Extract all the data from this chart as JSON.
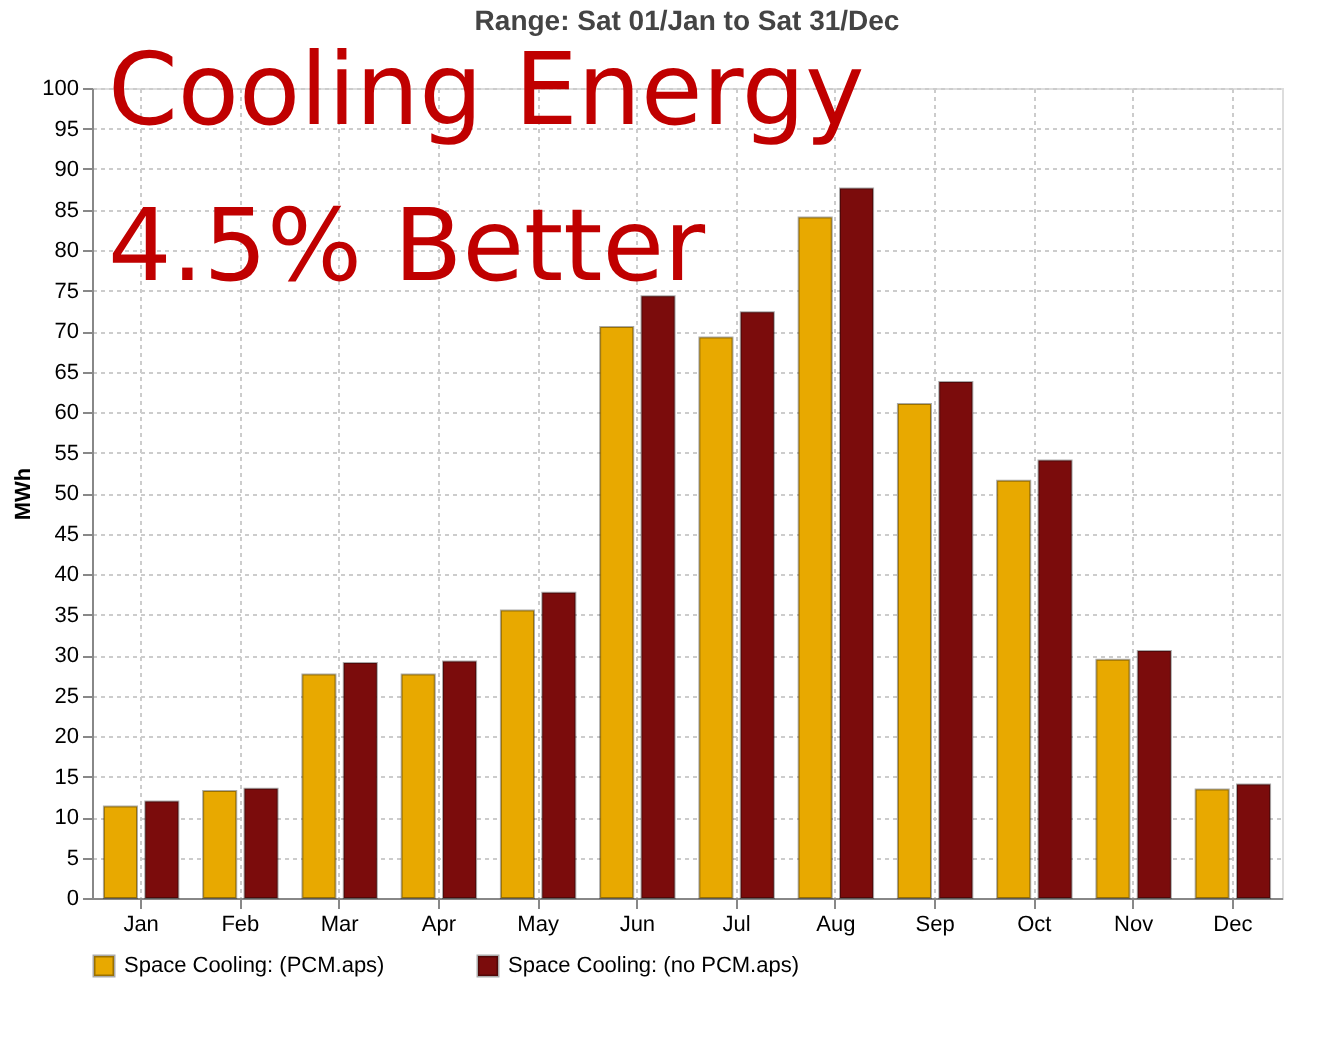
{
  "chart_data": {
    "type": "bar",
    "title": "Range: Sat 01/Jan to Sat 31/Dec",
    "ylabel": "MWh",
    "annotations": [
      "Cooling Energy",
      "4.5% Better"
    ],
    "categories": [
      "Jan",
      "Feb",
      "Mar",
      "Apr",
      "May",
      "Jun",
      "Jul",
      "Aug",
      "Sep",
      "Oct",
      "Nov",
      "Dec"
    ],
    "series": [
      {
        "name": "Space Cooling:  (PCM.aps)",
        "color": "#e8a900",
        "values": [
          11.3,
          13.2,
          27.6,
          27.6,
          35.5,
          70.5,
          69.2,
          84,
          61,
          51.5,
          29.4,
          13.4
        ]
      },
      {
        "name": "Space Cooling:  (no PCM.aps)",
        "color": "#7b0c0c",
        "values": [
          11.9,
          13.5,
          29,
          29.2,
          37.7,
          74.3,
          72.3,
          87.6,
          63.7,
          54,
          30.5,
          14
        ]
      }
    ],
    "ylim": [
      0,
      100
    ],
    "yticks": [
      0,
      5,
      10,
      15,
      20,
      25,
      30,
      35,
      40,
      45,
      50,
      55,
      60,
      65,
      70,
      75,
      80,
      85,
      90,
      95,
      100
    ],
    "grid": true,
    "legend": "bottom left"
  }
}
